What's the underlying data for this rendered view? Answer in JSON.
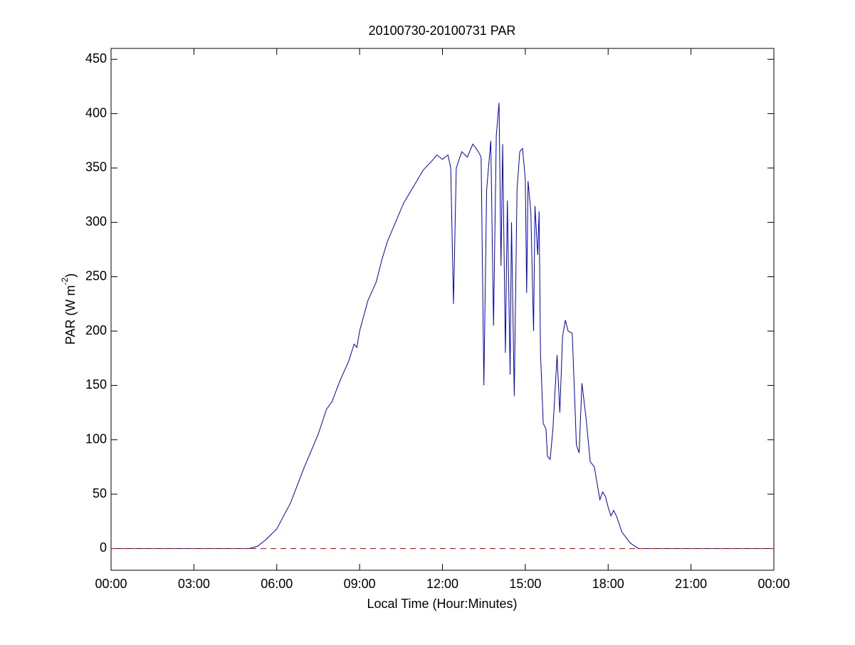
{
  "chart_data": {
    "type": "line",
    "title": "20100730-20100731 PAR",
    "xlabel": "Local Time (Hour:Minutes)",
    "ylabel": [
      "PAR (W m",
      "-2",
      ")"
    ],
    "xlim": [
      0,
      24
    ],
    "ylim": [
      -20,
      460
    ],
    "xticks": [
      {
        "value": 0,
        "label": "00:00"
      },
      {
        "value": 3,
        "label": "03:00"
      },
      {
        "value": 6,
        "label": "06:00"
      },
      {
        "value": 9,
        "label": "09:00"
      },
      {
        "value": 12,
        "label": "12:00"
      },
      {
        "value": 15,
        "label": "15:00"
      },
      {
        "value": 18,
        "label": "18:00"
      },
      {
        "value": 21,
        "label": "21:00"
      },
      {
        "value": 24,
        "label": "00:00"
      }
    ],
    "yticks": [
      0,
      50,
      100,
      150,
      200,
      250,
      300,
      350,
      400,
      450
    ],
    "series": [
      {
        "color": "#0000cc",
        "dashed": false,
        "x": [
          0,
          5.0,
          5.3,
          5.6,
          6.0,
          6.5,
          7.0,
          7.5,
          7.8,
          8.0,
          8.3,
          8.6,
          8.8,
          8.9,
          9.0,
          9.3,
          9.6,
          9.8,
          10.0,
          10.3,
          10.6,
          11.0,
          11.3,
          11.6,
          11.8,
          12.0,
          12.2,
          12.3,
          12.4,
          12.5,
          12.7,
          12.9,
          13.1,
          13.3,
          13.4,
          13.5,
          13.6,
          13.75,
          13.85,
          13.95,
          14.05,
          14.12,
          14.18,
          14.28,
          14.35,
          14.45,
          14.5,
          14.6,
          14.7,
          14.8,
          14.9,
          15.0,
          15.05,
          15.1,
          15.2,
          15.3,
          15.35,
          15.45,
          15.5,
          15.55,
          15.65,
          15.75,
          15.8,
          15.9,
          16.0,
          16.15,
          16.25,
          16.35,
          16.45,
          16.55,
          16.7,
          16.8,
          16.85,
          16.95,
          17.05,
          17.2,
          17.35,
          17.5,
          17.6,
          17.7,
          17.8,
          17.9,
          18.0,
          18.1,
          18.2,
          18.3,
          18.5,
          18.8,
          19.1,
          24
        ],
        "values": [
          0,
          0,
          2,
          8,
          18,
          42,
          75,
          105,
          128,
          135,
          155,
          172,
          188,
          185,
          200,
          228,
          245,
          265,
          282,
          300,
          318,
          335,
          348,
          356,
          362,
          358,
          362,
          350,
          225,
          350,
          365,
          360,
          372,
          365,
          360,
          150,
          330,
          375,
          205,
          380,
          410,
          260,
          372,
          180,
          320,
          160,
          300,
          140,
          330,
          365,
          368,
          340,
          235,
          338,
          310,
          200,
          315,
          270,
          310,
          180,
          115,
          110,
          85,
          82,
          110,
          178,
          125,
          195,
          210,
          200,
          198,
          130,
          95,
          88,
          152,
          120,
          80,
          75,
          60,
          45,
          52,
          48,
          38,
          30,
          35,
          30,
          15,
          5,
          0,
          0
        ]
      },
      {
        "color": "#ff0000",
        "dashed": true,
        "x": [
          0,
          24
        ],
        "values": [
          0,
          0
        ]
      }
    ],
    "box": true
  }
}
